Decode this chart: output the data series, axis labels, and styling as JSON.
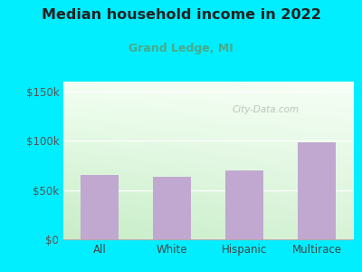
{
  "title": "Median household income in 2022",
  "subtitle": "Grand Ledge, MI",
  "categories": [
    "All",
    "White",
    "Hispanic",
    "Multirace"
  ],
  "values": [
    65000,
    63000,
    70000,
    98000
  ],
  "bar_color": "#c0a8d0",
  "background_color": "#00eeff",
  "title_color": "#222222",
  "subtitle_color": "#4aaa88",
  "yticks": [
    0,
    50000,
    100000,
    150000
  ],
  "ytick_labels": [
    "$0",
    "$50k",
    "$100k",
    "$150k"
  ],
  "ylim": [
    0,
    160000
  ],
  "watermark": "City-Data.com",
  "grad_top_color": "#f0faf0",
  "grad_bottom_color": "#c8eec8",
  "grad_right_color": "#ffffff"
}
